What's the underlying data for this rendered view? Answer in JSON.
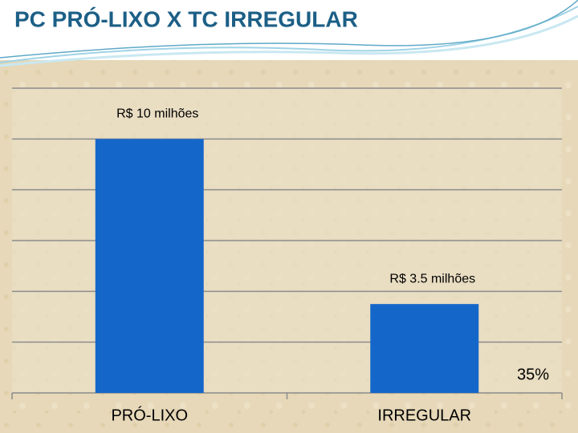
{
  "chart_data": {
    "type": "bar",
    "title": "PC PRÓ-LIXO X TC IRREGULAR",
    "categories": [
      "PRÓ-LIXO",
      "IRREGULAR"
    ],
    "values": [
      10,
      3.5
    ],
    "value_labels": [
      "R$ 10 milhões",
      "R$ 3.5 milhões"
    ],
    "annotation": "35%",
    "color": "#1466c9",
    "ylim": [
      0,
      12
    ],
    "yticks": [
      0,
      2,
      4,
      6,
      8,
      10,
      12
    ],
    "grid": true
  }
}
